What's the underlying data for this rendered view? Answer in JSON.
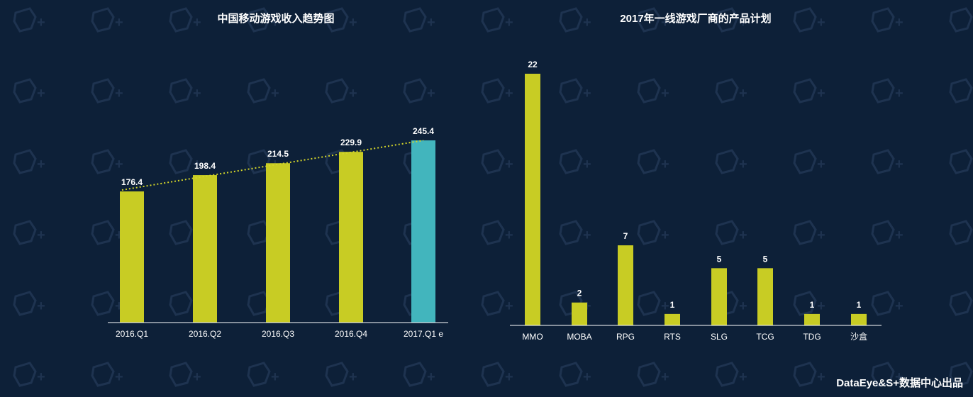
{
  "chart_data": [
    {
      "type": "bar",
      "title": "中国移动游戏收入趋势图",
      "categories": [
        "2016.Q1",
        "2016.Q2",
        "2016.Q3",
        "2016.Q4",
        "2017.Q1 e"
      ],
      "values": [
        176.4,
        198.4,
        214.5,
        229.9,
        245.4
      ],
      "value_labels": [
        "176.4",
        "198.4",
        "214.5",
        "229.9",
        "245.4"
      ],
      "ylim": [
        0,
        260
      ],
      "grid": false,
      "trendline": "dotted",
      "colors": {
        "bar": "#c8cc24",
        "highlight": "#42b5bd",
        "trend": "#d4d62a"
      },
      "highlight_index": 4
    },
    {
      "type": "bar",
      "title": "2017年一线游戏厂商的产品计划",
      "categories": [
        "MMO",
        "MOBA",
        "RPG",
        "RTS",
        "SLG",
        "TCG",
        "TDG",
        "沙盒"
      ],
      "values": [
        22,
        2,
        7,
        1,
        5,
        5,
        1,
        1
      ],
      "value_labels": [
        "22",
        "2",
        "7",
        "1",
        "5",
        "5",
        "1",
        "1"
      ],
      "ylim": [
        0,
        22
      ],
      "grid": false,
      "colors": {
        "bar": "#c8cc24"
      }
    }
  ],
  "footer": {
    "credit": "DataEye&S+数据中心出品"
  }
}
